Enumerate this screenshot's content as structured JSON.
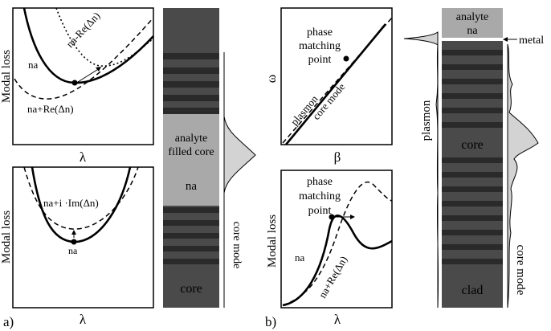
{
  "panel_a": {
    "label": "a)",
    "top_plot": {
      "ylabel": "Modal loss",
      "xlabel": "λ",
      "curve_labels": {
        "minus": "na-Re(Δn)",
        "plus": "na+Re(Δn)",
        "na": "na"
      }
    },
    "bottom_plot": {
      "ylabel": "Modal loss",
      "xlabel": "λ",
      "curve_labels": {
        "imag": "na+i ·Im(Δn)",
        "na": "na"
      }
    },
    "fiber": {
      "analyte_label_line1": "analyte",
      "analyte_label_line2": "filled core",
      "analyte_index": "na",
      "core_label": "core",
      "mode_label": "core mode"
    }
  },
  "panel_b": {
    "label": "b)",
    "dispersion_plot": {
      "ylabel": "ω",
      "xlabel": "β",
      "phase_line1": "phase",
      "phase_line2": "matching",
      "phase_line3": "point",
      "plasmon_label": "plasmon",
      "core_mode_label": "core mode"
    },
    "loss_plot": {
      "ylabel": "Modal loss",
      "xlabel": "λ",
      "phase_line1": "phase",
      "phase_line2": "matching",
      "phase_line3": "point",
      "na_label": "na",
      "re_label": "na+Re(Δn)"
    },
    "fiber": {
      "analyte_label": "analyte",
      "analyte_index": "na",
      "metal_label": "metal",
      "plasmon_label": "plasmon",
      "core_label": "core",
      "clad_label": "clad",
      "mode_label": "core mode"
    }
  }
}
